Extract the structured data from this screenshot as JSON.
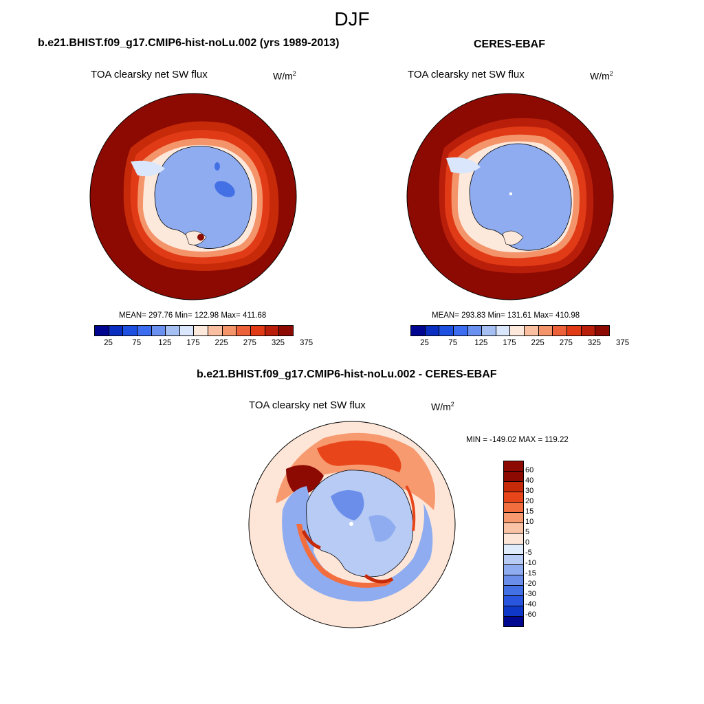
{
  "season": "DJF",
  "panels": {
    "model": {
      "title": "b.e21.BHIST.f09_g17.CMIP6-hist-noLu.002 (yrs 1989-2013)",
      "variable": "TOA clearsky net SW flux",
      "units_base": "W/m",
      "units_exp": "2",
      "stats": "MEAN= 297.76  Min= 122.98  Max= 411.68"
    },
    "obs": {
      "title": "CERES-EBAF",
      "variable": "TOA clearsky net SW flux",
      "units_base": "W/m",
      "units_exp": "2",
      "stats": "MEAN= 293.83  Min= 131.61  Max= 410.98"
    },
    "diff": {
      "title": "b.e21.BHIST.f09_g17.CMIP6-hist-noLu.002 - CERES-EBAF",
      "variable": "TOA clearsky net SW flux",
      "units_base": "W/m",
      "units_exp": "2",
      "stats": "MIN = -149.02 MAX = 119.22"
    }
  },
  "colorbar_abs": {
    "colors": [
      "#00068f",
      "#0a2fc0",
      "#1d4fe0",
      "#3c6cf0",
      "#6a90f0",
      "#a5bff2",
      "#d9e6fb",
      "#fde9dc",
      "#f9bfa0",
      "#f4946a",
      "#ec6139",
      "#e03a16",
      "#b81e0a",
      "#8c0a02"
    ],
    "ticks": [
      "25",
      "75",
      "125",
      "175",
      "225",
      "275",
      "325",
      "375"
    ]
  },
  "colorbar_diff": {
    "colors": [
      "#8c0a02",
      "#c62a09",
      "#e8461a",
      "#f36e3f",
      "#f79a70",
      "#fbc3a5",
      "#fde6d8",
      "#e0ebfb",
      "#b7cbf5",
      "#8eacef",
      "#6a8eea",
      "#4470e6",
      "#2a55df",
      "#1038c8",
      "#00088f"
    ],
    "ticks": [
      "60",
      "40",
      "30",
      "20",
      "15",
      "10",
      "5",
      "0",
      "-5",
      "-10",
      "-15",
      "-20",
      "-30",
      "-40",
      "-60"
    ]
  },
  "map_colors": {
    "ocean_high": "#8c0a02",
    "ice_edge_1": "#c62a09",
    "ice_edge_2": "#ec6139",
    "ice_edge_3": "#f9bfa0",
    "land": "#8eacef",
    "land_low": "#4470e6",
    "diff_bg": "#fde6d8"
  }
}
